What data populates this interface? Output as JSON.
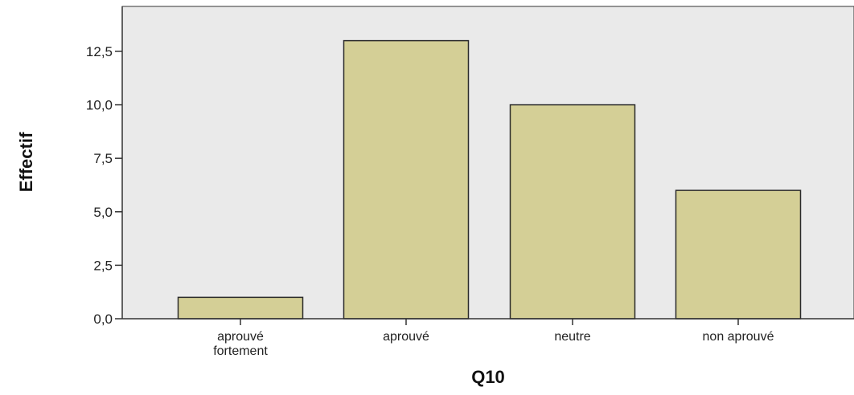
{
  "chart_data": {
    "type": "bar",
    "title": "",
    "xlabel": "Q10",
    "ylabel": "Effectif",
    "categories": [
      "aprouvé fortement",
      "aprouvé",
      "neutre",
      "non aprouvé"
    ],
    "category_lines": [
      [
        "aprouvé",
        "fortement"
      ],
      [
        "aprouvé"
      ],
      [
        "neutre"
      ],
      [
        "non aprouvé"
      ]
    ],
    "values": [
      1,
      13,
      10,
      6
    ],
    "ylim": [
      0,
      14.6
    ],
    "yticks": [
      0,
      2.5,
      5,
      7.5,
      10,
      12.5
    ],
    "ytick_labels": [
      "0,0",
      "2,5",
      "5,0",
      "7,5",
      "10,0",
      "12,5"
    ],
    "grid": false,
    "legend": "none",
    "colors": {
      "bar_fill": "#d4cf96",
      "bar_stroke": "#2b2b2b",
      "plot_background": "#eaeaea",
      "axis": "#333333"
    }
  }
}
